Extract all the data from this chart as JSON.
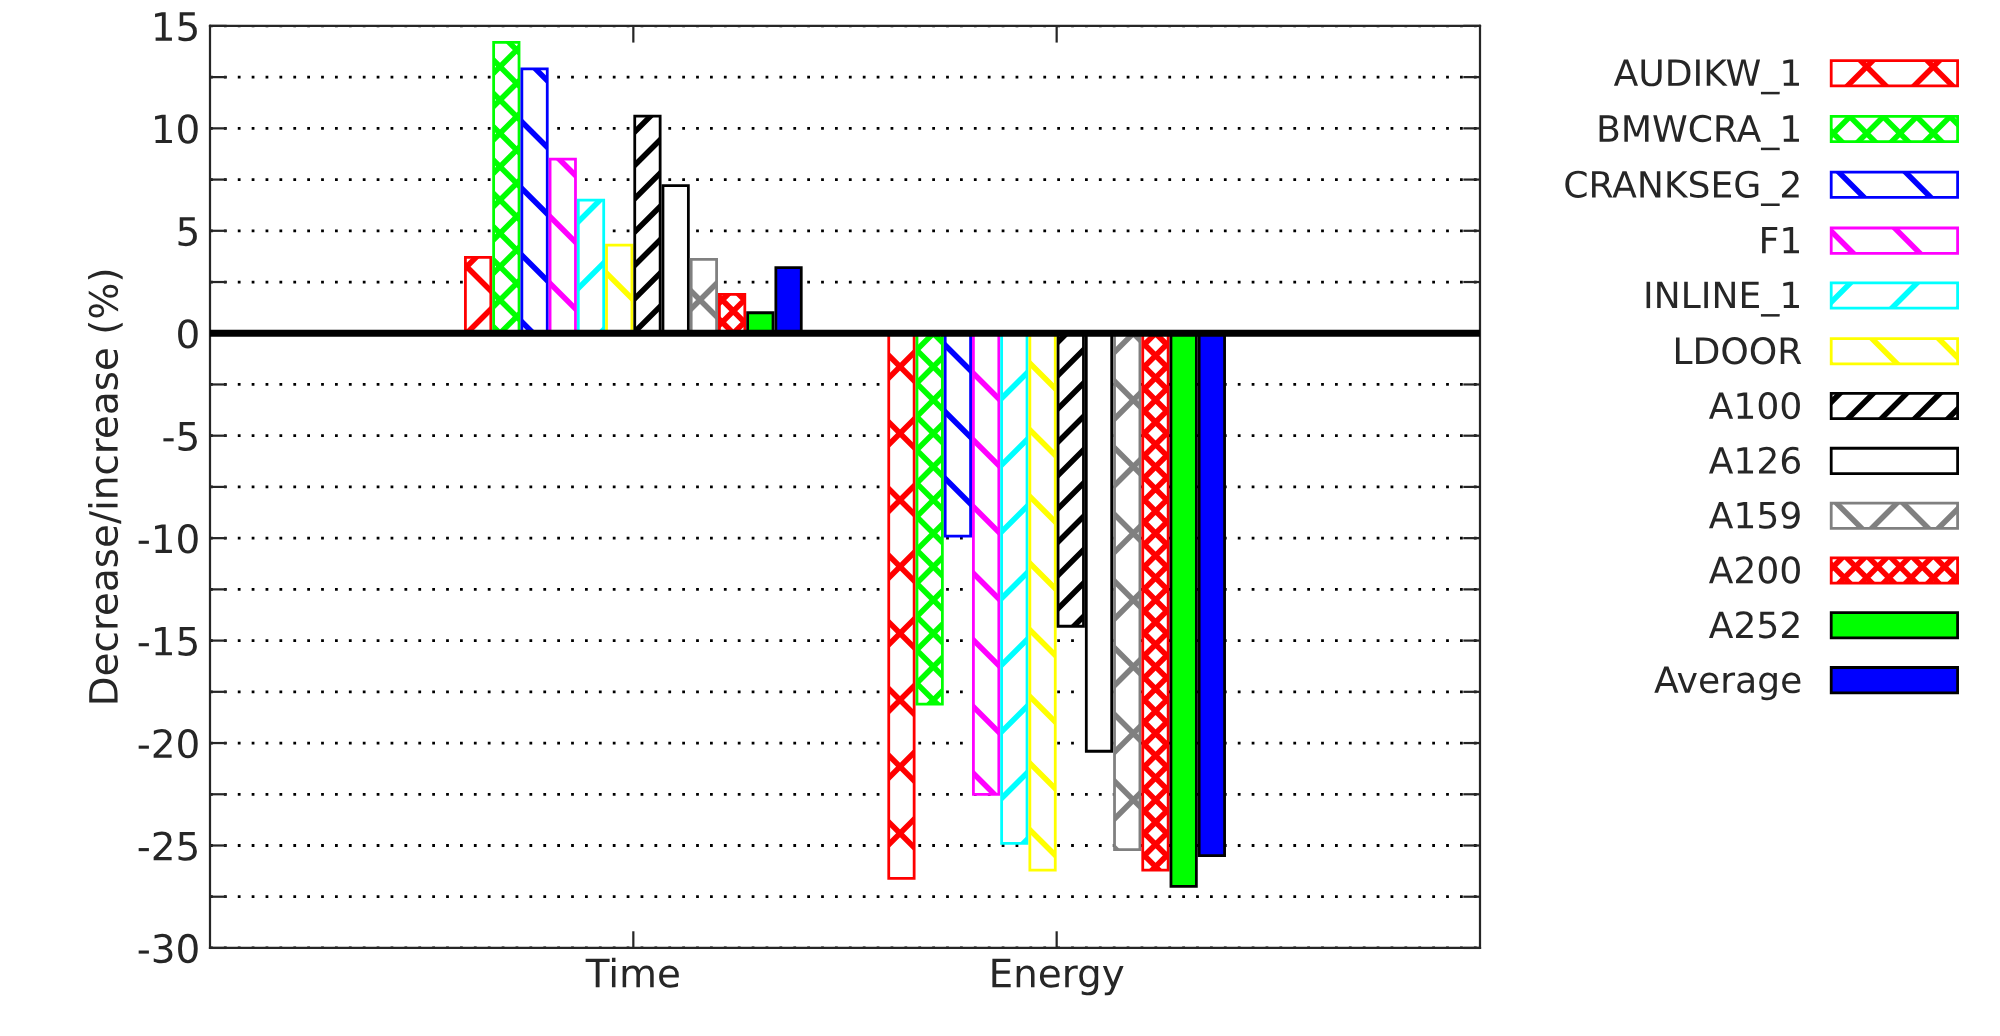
{
  "chart_data": {
    "type": "bar",
    "ylabel": "Decrease/increase (%)",
    "categories": [
      "Time",
      "Energy"
    ],
    "series": [
      {
        "name": "AUDIKW_1",
        "color": "#ff0000",
        "values": [
          3.7,
          -26.6
        ]
      },
      {
        "name": "BMWCRA_1",
        "color": "#00ff00",
        "values": [
          14.2,
          -18.1
        ]
      },
      {
        "name": "CRANKSEG_2",
        "color": "#0000ff",
        "values": [
          12.9,
          -9.9
        ]
      },
      {
        "name": "F1",
        "color": "#ff00ff",
        "values": [
          8.5,
          -22.5
        ]
      },
      {
        "name": "INLINE_1",
        "color": "#00ffff",
        "values": [
          6.5,
          -24.9
        ]
      },
      {
        "name": "LDOOR",
        "color": "#ffff00",
        "values": [
          4.3,
          -26.2
        ]
      },
      {
        "name": "A100",
        "color": "#000000",
        "values": [
          10.6,
          -14.3
        ]
      },
      {
        "name": "A126",
        "color": "#ffffff",
        "values": [
          7.2,
          -20.4
        ]
      },
      {
        "name": "A159",
        "color": "#808080",
        "values": [
          3.6,
          -25.2
        ]
      },
      {
        "name": "A200",
        "color": "#ff0000",
        "values": [
          1.9,
          -26.2
        ]
      },
      {
        "name": "A252",
        "color": "#00ff00",
        "values": [
          1.0,
          -27.0
        ]
      },
      {
        "name": "Average",
        "color": "#0000ff",
        "values": [
          3.2,
          -25.5
        ]
      }
    ],
    "ylim": [
      -30,
      15
    ],
    "yticks": [
      -30,
      {
        "value": -27.5,
        "label": null
      },
      -25,
      {
        "value": -22.5,
        "label": null
      },
      -20,
      {
        "value": -17.5,
        "label": null
      },
      -15,
      {
        "value": -12.5,
        "label": null
      },
      -10,
      {
        "value": -7.5,
        "label": null
      },
      -5,
      {
        "value": -2.5,
        "label": null
      },
      0,
      {
        "value": 2.5,
        "label": null
      },
      5,
      {
        "value": 7.5,
        "label": null
      },
      10,
      {
        "value": 12.5,
        "label": null
      },
      15
    ],
    "ref_lines": [
      {
        "axis": "y",
        "value": 0,
        "color": "#000000",
        "line_style": "solid"
      }
    ],
    "grid": "y",
    "legend": "right"
  }
}
